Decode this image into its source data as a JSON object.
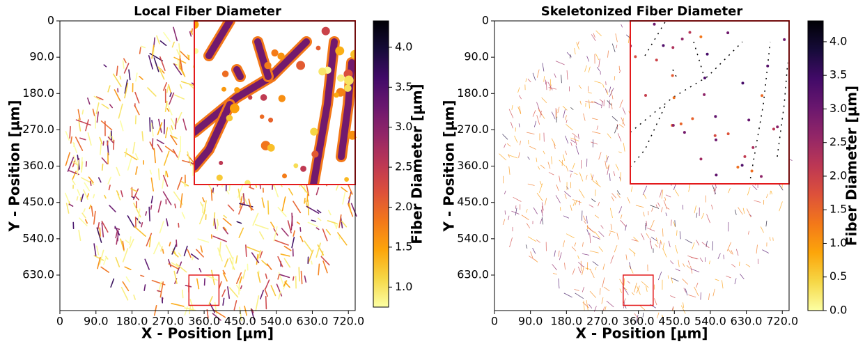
{
  "chart_data": [
    {
      "type": "image",
      "title": "Local Fiber Diameter",
      "xlabel": "X - Position [µm]",
      "ylabel": "Y - Position [µm]",
      "xlim": [
        0,
        737
      ],
      "ylim": [
        718,
        0
      ],
      "xticks": [
        0,
        {
          "value": 90,
          "label": "90.0"
        },
        {
          "value": 180,
          "label": "180.0"
        },
        {
          "value": 270,
          "label": "270.0"
        },
        {
          "value": 360,
          "label": "360.0"
        },
        {
          "value": 450,
          "label": "450.0"
        },
        {
          "value": 540,
          "label": "540.0"
        },
        {
          "value": 630,
          "label": "630.0"
        },
        {
          "value": 720,
          "label": "720.0"
        }
      ],
      "yticks": [
        0,
        {
          "value": 90,
          "label": "90.0"
        },
        {
          "value": 180,
          "label": "180.0"
        },
        {
          "value": 270,
          "label": "270.0"
        },
        {
          "value": 360,
          "label": "360.0"
        },
        {
          "value": 450,
          "label": "450.0"
        },
        {
          "value": 540,
          "label": "540.0"
        },
        {
          "value": 630,
          "label": "630.0"
        }
      ],
      "colormap": "inferno_r",
      "clim": [
        0.75,
        4.33
      ],
      "colorbar_label": "Fiber Diameter [µm]",
      "colorbar_ticks": [
        {
          "value": 1,
          "label": "1.0"
        },
        1.5,
        {
          "value": 2,
          "label": "2.0"
        },
        2.5,
        {
          "value": 3,
          "label": "3.0"
        },
        3.5,
        {
          "value": 4,
          "label": "4.0"
        }
      ],
      "zoom_box": {
        "x": [
          322,
          397
        ],
        "y": [
          630,
          705
        ]
      },
      "box_color": "#e31a1c"
    },
    {
      "type": "image",
      "title": "Skeletonized Fiber Diameter",
      "xlabel": "X - Position [µm]",
      "ylabel": "Y - Position [µm]",
      "xlim": [
        0,
        737
      ],
      "ylim": [
        718,
        0
      ],
      "xticks": [
        0,
        {
          "value": 90,
          "label": "90.0"
        },
        {
          "value": 180,
          "label": "180.0"
        },
        {
          "value": 270,
          "label": "270.0"
        },
        {
          "value": 360,
          "label": "360.0"
        },
        {
          "value": 450,
          "label": "450.0"
        },
        {
          "value": 540,
          "label": "540.0"
        },
        {
          "value": 630,
          "label": "630.0"
        },
        {
          "value": 720,
          "label": "720.0"
        }
      ],
      "yticks": [
        0,
        {
          "value": 90,
          "label": "90.0"
        },
        {
          "value": 180,
          "label": "180.0"
        },
        {
          "value": 270,
          "label": "270.0"
        },
        {
          "value": 360,
          "label": "360.0"
        },
        {
          "value": 450,
          "label": "450.0"
        },
        {
          "value": 540,
          "label": "540.0"
        },
        {
          "value": 630,
          "label": "630.0"
        }
      ],
      "colormap": "inferno_r",
      "clim": [
        0,
        4.31
      ],
      "colorbar_label": "Fiber Diameter [µm]",
      "colorbar_ticks": [
        {
          "value": 0,
          "label": "0.0"
        },
        0.5,
        {
          "value": 1,
          "label": "1.0"
        },
        1.5,
        {
          "value": 2,
          "label": "2.0"
        },
        2.5,
        {
          "value": 3,
          "label": "3.0"
        },
        3.5,
        {
          "value": 4,
          "label": "4.0"
        }
      ],
      "zoom_box": {
        "x": [
          322,
          397
        ],
        "y": [
          630,
          705
        ]
      },
      "box_color": "#e31a1c"
    }
  ]
}
